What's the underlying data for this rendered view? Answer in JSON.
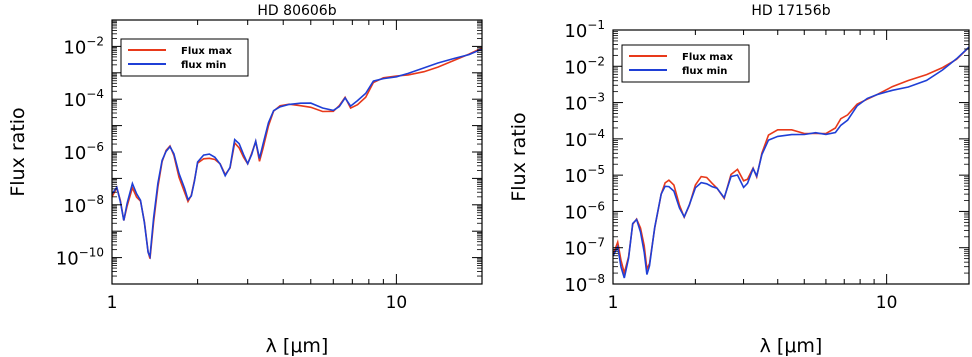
{
  "chart_data": [
    {
      "type": "line",
      "title": "HD 80606b",
      "xlabel": "λ [μm]",
      "ylabel": "Flux ratio",
      "x_scale": "log",
      "y_scale": "log",
      "xlim": [
        1,
        20
      ],
      "ylim": [
        1e-11,
        0.1
      ],
      "x_ticks": [
        {
          "value": 1,
          "label": "1"
        },
        {
          "value": 10,
          "label": "10"
        }
      ],
      "y_ticks": [
        {
          "value": 1e-10,
          "base": "10",
          "exp": "−10"
        },
        {
          "value": 1e-08,
          "base": "10",
          "exp": "−8"
        },
        {
          "value": 1e-06,
          "base": "10",
          "exp": "−6"
        },
        {
          "value": 0.0001,
          "base": "10",
          "exp": "−4"
        },
        {
          "value": 0.01,
          "base": "10",
          "exp": "−2"
        }
      ],
      "legend_position": "top-left",
      "series": [
        {
          "name": "Flux max",
          "color": "#e8391a",
          "offset_dex": 0.0
        },
        {
          "name": "flux min",
          "color": "#1f3fd6",
          "offset_dex": 0.06
        }
      ],
      "points": [
        [
          1.0,
          -7.7
        ],
        [
          1.04,
          -7.4
        ],
        [
          1.07,
          -7.9
        ],
        [
          1.1,
          -8.6
        ],
        [
          1.13,
          -8.0
        ],
        [
          1.18,
          -7.3
        ],
        [
          1.22,
          -7.7
        ],
        [
          1.26,
          -7.9
        ],
        [
          1.3,
          -8.7
        ],
        [
          1.34,
          -9.8
        ],
        [
          1.36,
          -10.0
        ],
        [
          1.4,
          -8.6
        ],
        [
          1.45,
          -7.3
        ],
        [
          1.5,
          -6.4
        ],
        [
          1.55,
          -6.0
        ],
        [
          1.6,
          -5.8
        ],
        [
          1.65,
          -6.1
        ],
        [
          1.72,
          -6.9
        ],
        [
          1.8,
          -7.5
        ],
        [
          1.85,
          -7.9
        ],
        [
          1.9,
          -7.7
        ],
        [
          1.95,
          -7.1
        ],
        [
          2.0,
          -6.4
        ],
        [
          2.1,
          -6.2
        ],
        [
          2.2,
          -6.2
        ],
        [
          2.3,
          -6.3
        ],
        [
          2.4,
          -6.5
        ],
        [
          2.5,
          -6.9
        ],
        [
          2.6,
          -6.6
        ],
        [
          2.7,
          -5.6
        ],
        [
          2.8,
          -5.8
        ],
        [
          2.9,
          -6.2
        ],
        [
          3.0,
          -6.5
        ],
        [
          3.1,
          -6.1
        ],
        [
          3.2,
          -5.6
        ],
        [
          3.3,
          -6.3
        ],
        [
          3.4,
          -5.8
        ],
        [
          3.55,
          -5.0
        ],
        [
          3.7,
          -4.5
        ],
        [
          3.9,
          -4.3
        ],
        [
          4.2,
          -4.2
        ],
        [
          4.6,
          -4.2
        ],
        [
          5.0,
          -4.25
        ],
        [
          5.5,
          -4.45
        ],
        [
          6.0,
          -4.5
        ],
        [
          6.3,
          -4.3
        ],
        [
          6.6,
          -3.95
        ],
        [
          6.9,
          -4.3
        ],
        [
          7.3,
          -4.15
        ],
        [
          7.8,
          -3.9
        ],
        [
          8.3,
          -3.4
        ],
        [
          9.0,
          -3.25
        ],
        [
          10.0,
          -3.15
        ],
        [
          11.0,
          -3.05
        ],
        [
          12.5,
          -2.9
        ],
        [
          14.0,
          -2.75
        ],
        [
          16.0,
          -2.55
        ],
        [
          18.0,
          -2.35
        ],
        [
          20.0,
          -2.1
        ]
      ],
      "legend_labels": [
        "Flux max",
        "flux min"
      ]
    },
    {
      "type": "line",
      "title": "HD 17156b",
      "xlabel": "λ [μm]",
      "ylabel": "Flux ratio",
      "x_scale": "log",
      "y_scale": "log",
      "xlim": [
        1,
        20
      ],
      "ylim": [
        1e-08,
        0.1
      ],
      "x_ticks": [
        {
          "value": 1,
          "label": "1"
        },
        {
          "value": 10,
          "label": "10"
        }
      ],
      "y_ticks": [
        {
          "value": 1e-08,
          "base": "10",
          "exp": "−8"
        },
        {
          "value": 1e-07,
          "base": "10",
          "exp": "−7"
        },
        {
          "value": 1e-06,
          "base": "10",
          "exp": "−6"
        },
        {
          "value": 1e-05,
          "base": "10",
          "exp": "−5"
        },
        {
          "value": 0.0001,
          "base": "10",
          "exp": "−4"
        },
        {
          "value": 0.001,
          "base": "10",
          "exp": "−3"
        },
        {
          "value": 0.01,
          "base": "10",
          "exp": "−2"
        },
        {
          "value": 0.1,
          "base": "10",
          "exp": "−1"
        }
      ],
      "legend_position": "top-left",
      "series": [
        {
          "name": "Flux max",
          "color": "#e8391a",
          "offset_dex": 0.0
        },
        {
          "name": "flux min",
          "color": "#1f3fd6",
          "offset_dex": -0.08
        }
      ],
      "points": [
        [
          1.0,
          -7.2
        ],
        [
          1.04,
          -6.9
        ],
        [
          1.07,
          -7.4
        ],
        [
          1.1,
          -7.7
        ],
        [
          1.14,
          -7.2
        ],
        [
          1.18,
          -6.3
        ],
        [
          1.22,
          -6.2
        ],
        [
          1.26,
          -6.5
        ],
        [
          1.3,
          -7.0
        ],
        [
          1.33,
          -7.6
        ],
        [
          1.36,
          -7.4
        ],
        [
          1.42,
          -6.4
        ],
        [
          1.5,
          -5.5
        ],
        [
          1.55,
          -5.25
        ],
        [
          1.6,
          -5.2
        ],
        [
          1.67,
          -5.3
        ],
        [
          1.75,
          -5.8
        ],
        [
          1.82,
          -6.1
        ],
        [
          1.9,
          -5.8
        ],
        [
          2.0,
          -5.3
        ],
        [
          2.1,
          -5.1
        ],
        [
          2.2,
          -5.1
        ],
        [
          2.3,
          -5.2
        ],
        [
          2.4,
          -5.3
        ],
        [
          2.55,
          -5.6
        ],
        [
          2.7,
          -5.0
        ],
        [
          2.85,
          -4.9
        ],
        [
          3.0,
          -5.2
        ],
        [
          3.1,
          -5.1
        ],
        [
          3.25,
          -4.75
        ],
        [
          3.35,
          -5.0
        ],
        [
          3.5,
          -4.4
        ],
        [
          3.7,
          -3.95
        ],
        [
          4.0,
          -3.8
        ],
        [
          4.5,
          -3.75
        ],
        [
          5.0,
          -3.8
        ],
        [
          5.5,
          -3.8
        ],
        [
          6.0,
          -3.85
        ],
        [
          6.5,
          -3.75
        ],
        [
          6.8,
          -3.5
        ],
        [
          7.2,
          -3.35
        ],
        [
          7.8,
          -3.0
        ],
        [
          8.5,
          -2.85
        ],
        [
          9.3,
          -2.75
        ],
        [
          10.5,
          -2.6
        ],
        [
          12.0,
          -2.45
        ],
        [
          14.0,
          -2.25
        ],
        [
          16.0,
          -2.0
        ],
        [
          18.0,
          -1.75
        ],
        [
          20.0,
          -1.45
        ]
      ],
      "legend_labels": [
        "Flux max",
        "flux min"
      ]
    }
  ]
}
